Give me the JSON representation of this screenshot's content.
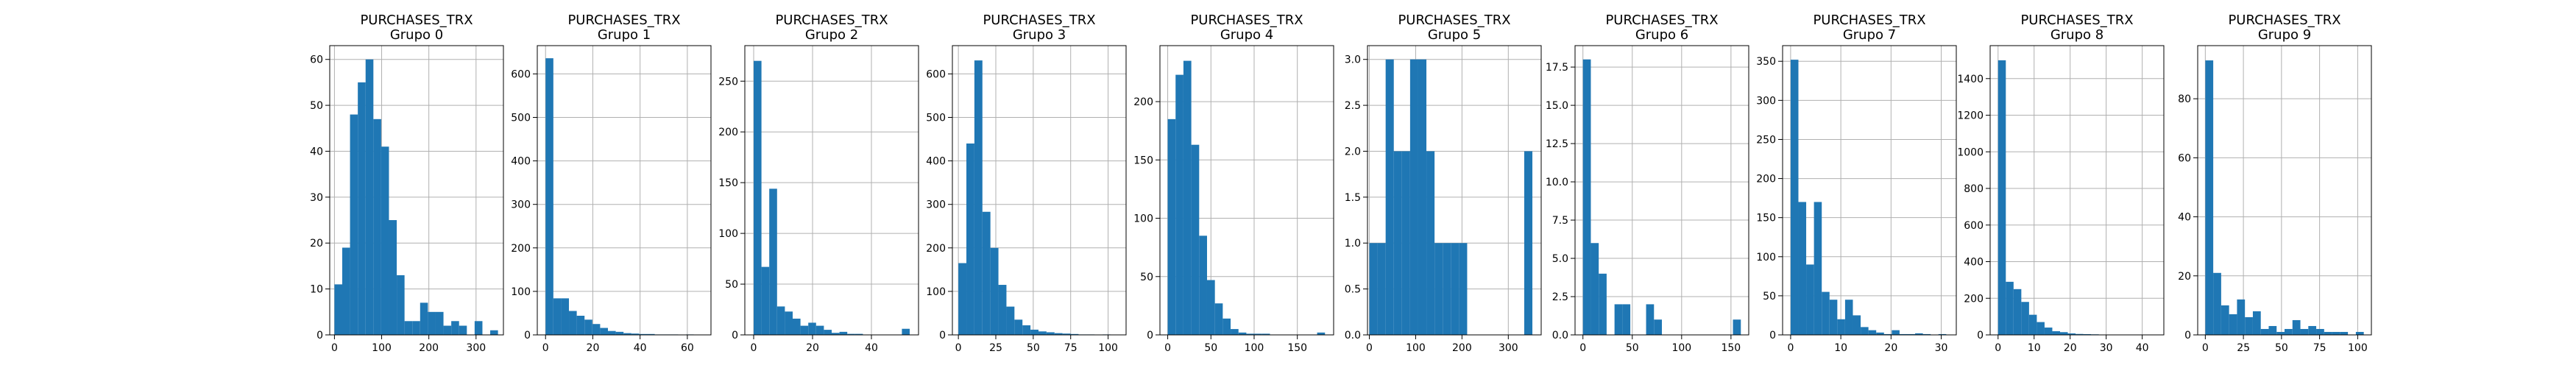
{
  "figure": {
    "background": "#ffffff"
  },
  "style": {
    "bar_color": "#1f77b4",
    "grid_color": "#b0b0b0",
    "axis_color": "#000000"
  },
  "chart_data": [
    {
      "type": "bar",
      "title": "PURCHASES_TRX",
      "subtitle": "Grupo 0",
      "grid": true,
      "xlim": [
        -10,
        358
      ],
      "ylim": [
        0,
        63
      ],
      "xticks": [
        0,
        100,
        200,
        300
      ],
      "yticks": [
        0,
        10,
        20,
        30,
        40,
        50,
        60
      ],
      "bin_edges": [
        0,
        16.5,
        33,
        49.5,
        66,
        82.5,
        99,
        115.5,
        132,
        148.5,
        165,
        181.5,
        198,
        214.5,
        231,
        247.5,
        264,
        280.5,
        297,
        313.5,
        330,
        346.5
      ],
      "values": [
        11,
        19,
        48,
        55,
        60,
        47,
        41,
        25,
        13,
        3,
        3,
        7,
        5,
        5,
        2,
        3,
        2,
        0,
        3,
        0,
        1
      ]
    },
    {
      "type": "bar",
      "title": "PURCHASES_TRX",
      "subtitle": "Grupo 1",
      "grid": true,
      "xlim": [
        -3.5,
        70
      ],
      "ylim": [
        0,
        665
      ],
      "xticks": [
        0,
        20,
        40,
        60
      ],
      "yticks": [
        0,
        100,
        200,
        300,
        400,
        500,
        600
      ],
      "bin_edges": [
        0,
        3.3,
        6.6,
        9.9,
        13.2,
        16.5,
        19.8,
        23.1,
        26.4,
        29.7,
        33,
        36.3,
        39.6,
        42.9,
        46.2,
        49.5,
        52.8,
        56.1,
        59.4,
        62.7,
        66
      ],
      "values": [
        636,
        84,
        84,
        55,
        44,
        35,
        25,
        16,
        9,
        7,
        4,
        3,
        2,
        2,
        1,
        1,
        1,
        0,
        1,
        0
      ]
    },
    {
      "type": "bar",
      "title": "PURCHASES_TRX",
      "subtitle": "Grupo 2",
      "grid": true,
      "xlim": [
        -3,
        56
      ],
      "ylim": [
        0,
        285
      ],
      "xticks": [
        0,
        20,
        40
      ],
      "yticks": [
        0,
        50,
        100,
        150,
        200,
        250
      ],
      "bin_edges": [
        0,
        2.65,
        5.3,
        7.95,
        10.6,
        13.25,
        15.9,
        18.55,
        21.2,
        23.85,
        26.5,
        29.15,
        31.8,
        34.45,
        37.1,
        39.75,
        42.4,
        45.05,
        47.7,
        50.35,
        53
      ],
      "values": [
        270,
        67,
        144,
        28,
        23,
        16,
        9,
        12,
        9,
        5,
        2,
        3,
        1,
        1,
        0,
        0,
        0,
        0,
        0,
        6
      ]
    },
    {
      "type": "bar",
      "title": "PURCHASES_TRX",
      "subtitle": "Grupo 3",
      "grid": true,
      "xlim": [
        -4,
        112
      ],
      "ylim": [
        0,
        665
      ],
      "xticks": [
        0,
        25,
        50,
        75,
        100
      ],
      "yticks": [
        0,
        100,
        200,
        300,
        400,
        500,
        600
      ],
      "bin_edges": [
        0,
        5.35,
        10.7,
        16.05,
        21.4,
        26.75,
        32.1,
        37.45,
        42.8,
        48.15,
        53.5,
        58.85,
        64.2,
        69.55,
        74.9,
        80.25,
        85.6,
        90.95,
        96.3,
        101.65,
        107
      ],
      "values": [
        165,
        440,
        631,
        283,
        200,
        115,
        65,
        35,
        22,
        12,
        8,
        6,
        4,
        3,
        2,
        1,
        1,
        0,
        1,
        0
      ]
    },
    {
      "type": "bar",
      "title": "PURCHASES_TRX",
      "subtitle": "Grupo 4",
      "grid": true,
      "xlim": [
        -9,
        192
      ],
      "ylim": [
        0,
        248
      ],
      "xticks": [
        0,
        50,
        100,
        150
      ],
      "yticks": [
        0,
        50,
        100,
        150,
        200
      ],
      "bin_edges": [
        0,
        9.1,
        18.2,
        27.3,
        36.4,
        45.5,
        54.6,
        63.7,
        72.8,
        81.9,
        91,
        100.1,
        109.2,
        118.3,
        127.4,
        136.5,
        145.6,
        154.7,
        163.8,
        172.9,
        182
      ],
      "values": [
        185,
        223,
        235,
        163,
        85,
        47,
        27,
        14,
        5,
        2,
        1,
        1,
        1,
        0,
        0,
        0,
        0,
        0,
        0,
        2
      ]
    },
    {
      "type": "bar",
      "title": "PURCHASES_TRX",
      "subtitle": "Grupo 5",
      "grid": true,
      "xlim": [
        -4,
        371
      ],
      "ylim": [
        0,
        3.15
      ],
      "xticks": [
        0,
        100,
        200,
        300
      ],
      "yticks": [
        0.0,
        0.5,
        1.0,
        1.5,
        2.0,
        2.5,
        3.0
      ],
      "bin_edges": [
        0,
        17.6,
        35.2,
        52.8,
        70.4,
        88,
        105.6,
        123.2,
        140.8,
        158.4,
        176,
        193.6,
        211.2,
        228.8,
        246.4,
        264,
        281.6,
        299.2,
        316.8,
        334.4,
        352
      ],
      "values": [
        1,
        1,
        3,
        2,
        2,
        3,
        3,
        2,
        1,
        1,
        1,
        1,
        0,
        0,
        0,
        0,
        0,
        0,
        0,
        2
      ]
    },
    {
      "type": "bar",
      "title": "PURCHASES_TRX",
      "subtitle": "Grupo 6",
      "grid": true,
      "xlim": [
        -8,
        168
      ],
      "ylim": [
        0,
        18.9
      ],
      "xticks": [
        0,
        50,
        100,
        150
      ],
      "yticks": [
        0.0,
        2.5,
        5.0,
        7.5,
        10.0,
        12.5,
        15.0,
        17.5
      ],
      "bin_edges": [
        0,
        8,
        16,
        24,
        32,
        40,
        48,
        56,
        64,
        72,
        80,
        88,
        96,
        104,
        112,
        120,
        128,
        136,
        144,
        152,
        160
      ],
      "values": [
        18,
        6,
        4,
        0,
        2,
        2,
        0,
        0,
        2,
        1,
        0,
        0,
        0,
        0,
        0,
        0,
        0,
        0,
        0,
        1
      ]
    },
    {
      "type": "bar",
      "title": "PURCHASES_TRX",
      "subtitle": "Grupo 7",
      "grid": true,
      "xlim": [
        -1.6,
        33
      ],
      "ylim": [
        0,
        370
      ],
      "xticks": [
        0,
        10,
        20,
        30
      ],
      "yticks": [
        0,
        50,
        100,
        150,
        200,
        250,
        300,
        350
      ],
      "bin_edges": [
        0,
        1.55,
        3.1,
        4.65,
        6.2,
        7.75,
        9.3,
        10.85,
        12.4,
        13.95,
        15.5,
        17.05,
        18.6,
        20.15,
        21.7,
        23.25,
        24.8,
        26.35,
        27.9,
        29.45,
        31
      ],
      "values": [
        352,
        170,
        90,
        170,
        55,
        45,
        20,
        45,
        25,
        10,
        6,
        3,
        1,
        6,
        1,
        1,
        2,
        1,
        0,
        1
      ]
    },
    {
      "type": "bar",
      "title": "PURCHASES_TRX",
      "subtitle": "Grupo 8",
      "grid": true,
      "xlim": [
        -2.2,
        46
      ],
      "ylim": [
        0,
        1580
      ],
      "xticks": [
        0,
        10,
        20,
        30,
        40
      ],
      "yticks": [
        0,
        200,
        400,
        600,
        800,
        1000,
        1200,
        1400
      ],
      "bin_edges": [
        0,
        2.15,
        4.3,
        6.45,
        8.6,
        10.75,
        12.9,
        15.05,
        17.2,
        19.35,
        21.5,
        23.65,
        25.8,
        27.95,
        30.1,
        32.25,
        34.4,
        36.55,
        38.7,
        40.85,
        43
      ],
      "values": [
        1500,
        290,
        250,
        180,
        110,
        70,
        40,
        20,
        15,
        8,
        5,
        4,
        3,
        2,
        1,
        1,
        1,
        0,
        1,
        0
      ]
    },
    {
      "type": "bar",
      "title": "PURCHASES_TRX",
      "subtitle": "Grupo 9",
      "grid": true,
      "xlim": [
        -5,
        109
      ],
      "ylim": [
        0,
        98
      ],
      "xticks": [
        0,
        25,
        50,
        75,
        100
      ],
      "yticks": [
        0,
        20,
        40,
        60,
        80
      ],
      "bin_edges": [
        0,
        5.2,
        10.4,
        15.6,
        20.8,
        26,
        31.2,
        36.4,
        41.6,
        46.8,
        52,
        57.2,
        62.4,
        67.6,
        72.8,
        78,
        83.2,
        88.4,
        93.6,
        98.8,
        104
      ],
      "values": [
        93,
        21,
        10,
        7,
        12,
        6,
        8,
        2,
        3,
        1,
        2,
        5,
        2,
        3,
        2,
        1,
        1,
        1,
        0,
        1
      ]
    }
  ]
}
